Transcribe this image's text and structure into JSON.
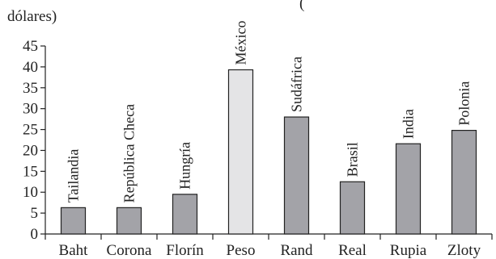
{
  "chart_data": {
    "type": "bar",
    "ylabel_lines": [
      "(",
      "dólares)"
    ],
    "categories": [
      "Baht",
      "Corona",
      "Florín",
      "Peso",
      "Rand",
      "Real",
      "Rupia",
      "Zloty"
    ],
    "bar_labels": [
      "Tailandia",
      "República Checa",
      "Hungría",
      "México",
      "Sudáfrica",
      "Brasil",
      "India",
      "Polonia"
    ],
    "values": [
      6.3,
      6.3,
      9.5,
      39.3,
      28,
      12.5,
      21.6,
      24.8
    ],
    "highlight_index": 3,
    "ylim": [
      0,
      45
    ],
    "yticks": [
      0,
      5,
      10,
      15,
      20,
      25,
      30,
      35,
      40,
      45
    ],
    "grid": false,
    "colors": {
      "bar": "#a3a3a8",
      "highlight_bar": "#e4e4e6",
      "axis": "#222222",
      "text": "#222222"
    }
  }
}
